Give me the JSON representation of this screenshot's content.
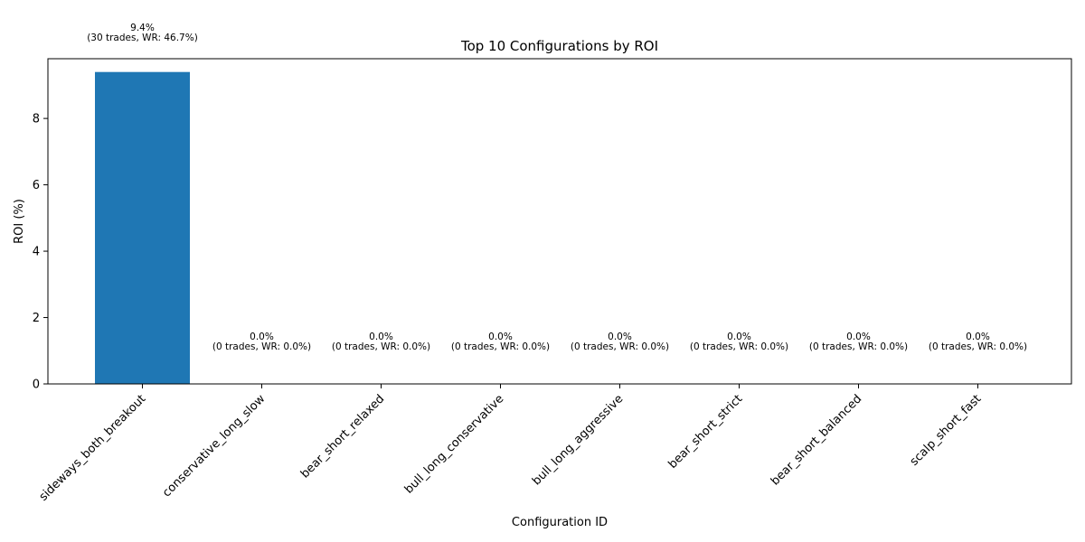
{
  "chart_data": {
    "type": "bar",
    "title": "Top 10 Configurations by ROI",
    "xlabel": "Configuration ID",
    "ylabel": "ROI (%)",
    "ylim": [
      0,
      9.8
    ],
    "yticks": [
      0,
      2,
      4,
      6,
      8
    ],
    "grid": false,
    "bar_color": "#1f77b4",
    "categories": [
      "sideways_both_breakout",
      "conservative_long_slow",
      "bear_short_relaxed",
      "bull_long_conservative",
      "bull_long_aggressive",
      "bear_short_strict",
      "bear_short_balanced",
      "scalp_short_fast"
    ],
    "values": [
      9.4,
      0.0,
      0.0,
      0.0,
      0.0,
      0.0,
      0.0,
      0.0
    ],
    "annotations": [
      {
        "line1": "9.4%",
        "line2": "(30 trades, WR: 46.7%)"
      },
      {
        "line1": "0.0%",
        "line2": "(0 trades, WR: 0.0%)"
      },
      {
        "line1": "0.0%",
        "line2": "(0 trades, WR: 0.0%)"
      },
      {
        "line1": "0.0%",
        "line2": "(0 trades, WR: 0.0%)"
      },
      {
        "line1": "0.0%",
        "line2": "(0 trades, WR: 0.0%)"
      },
      {
        "line1": "0.0%",
        "line2": "(0 trades, WR: 0.0%)"
      },
      {
        "line1": "0.0%",
        "line2": "(0 trades, WR: 0.0%)"
      },
      {
        "line1": "0.0%",
        "line2": "(0 trades, WR: 0.0%)"
      }
    ]
  }
}
